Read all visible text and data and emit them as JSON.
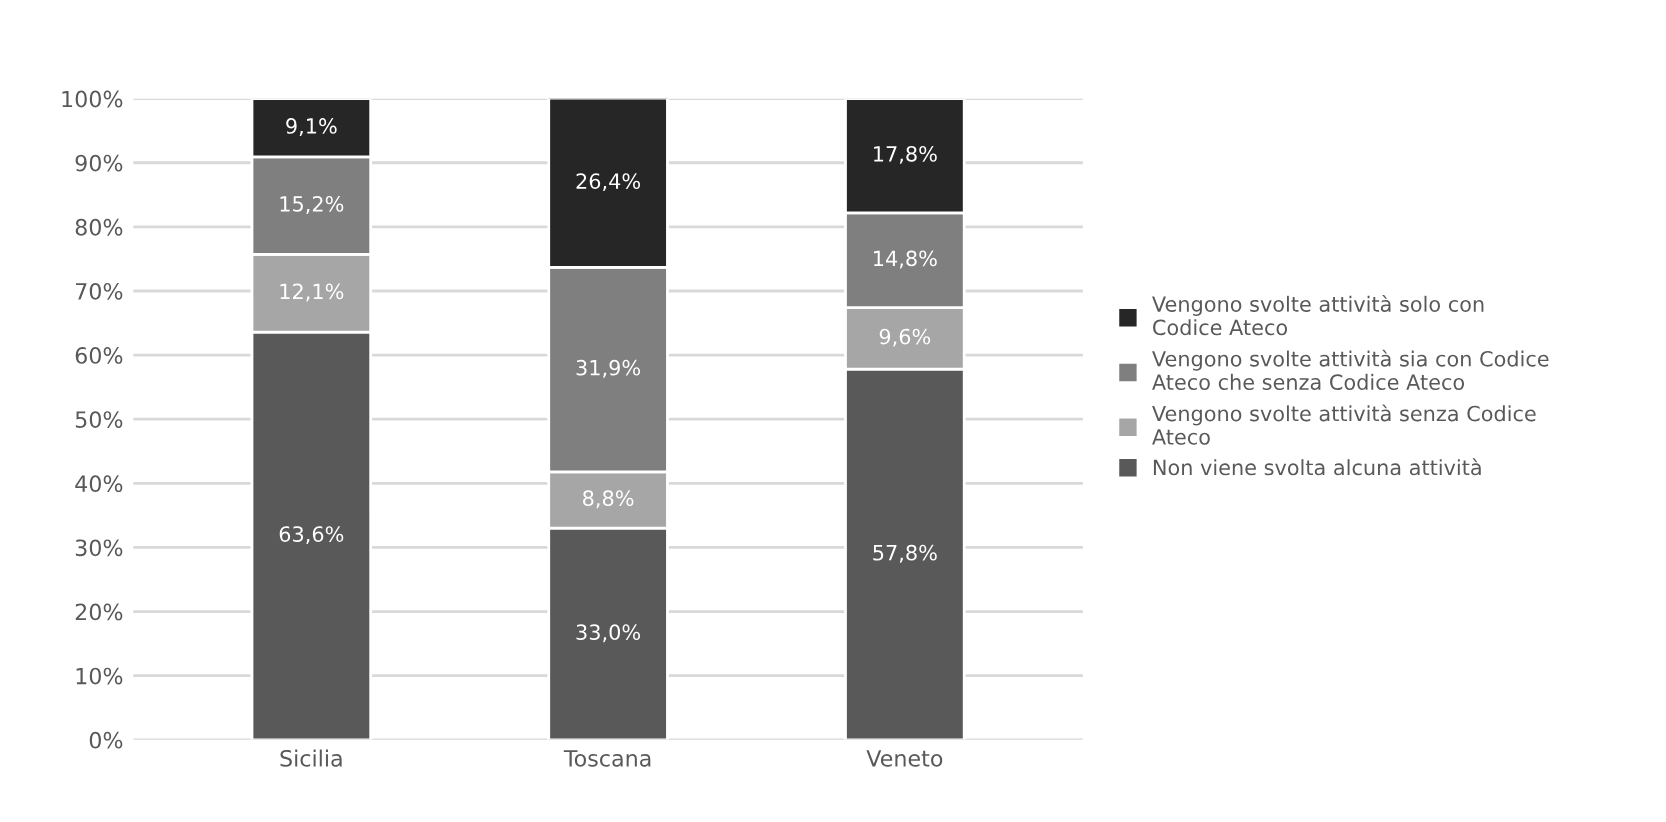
{
  "chart_data": {
    "type": "bar",
    "stacked": true,
    "categories": [
      "Sicilia",
      "Toscana",
      "Veneto"
    ],
    "series": [
      {
        "name": "Non viene svolta alcuna attività",
        "color": "#595959",
        "values": [
          63.6,
          33.0,
          57.8
        ],
        "value_labels": [
          "63,6%",
          "33,0%",
          "57,8%"
        ]
      },
      {
        "name": "Vengono svolte attività senza Codice Ateco",
        "color": "#a6a6a6",
        "values": [
          12.1,
          8.8,
          9.6
        ],
        "value_labels": [
          "12,1%",
          "8,8%",
          "9,6%"
        ]
      },
      {
        "name": "Vengono svolte attività sia con Codice Ateco che senza Codice Ateco",
        "color": "#7f7f7f",
        "values": [
          15.2,
          31.9,
          14.8
        ],
        "value_labels": [
          "15,2%",
          "31,9%",
          "14,8%"
        ]
      },
      {
        "name": "Vengono svolte attività solo con Codice Ateco",
        "color": "#262626",
        "values": [
          9.1,
          26.4,
          17.8
        ],
        "value_labels": [
          "9,1%",
          "26,4%",
          "17,8%"
        ]
      }
    ],
    "ylim": [
      0,
      100
    ],
    "yticks": [
      {
        "value": 0,
        "label": "0%"
      },
      {
        "value": 10,
        "label": "10%"
      },
      {
        "value": 20,
        "label": "20%"
      },
      {
        "value": 30,
        "label": "30%"
      },
      {
        "value": 40,
        "label": "40%"
      },
      {
        "value": 50,
        "label": "50%"
      },
      {
        "value": 60,
        "label": "60%"
      },
      {
        "value": 70,
        "label": "70%"
      },
      {
        "value": 80,
        "label": "80%"
      },
      {
        "value": 90,
        "label": "90%"
      },
      {
        "value": 100,
        "label": "100%"
      }
    ],
    "grid": "y",
    "legend": "right"
  }
}
